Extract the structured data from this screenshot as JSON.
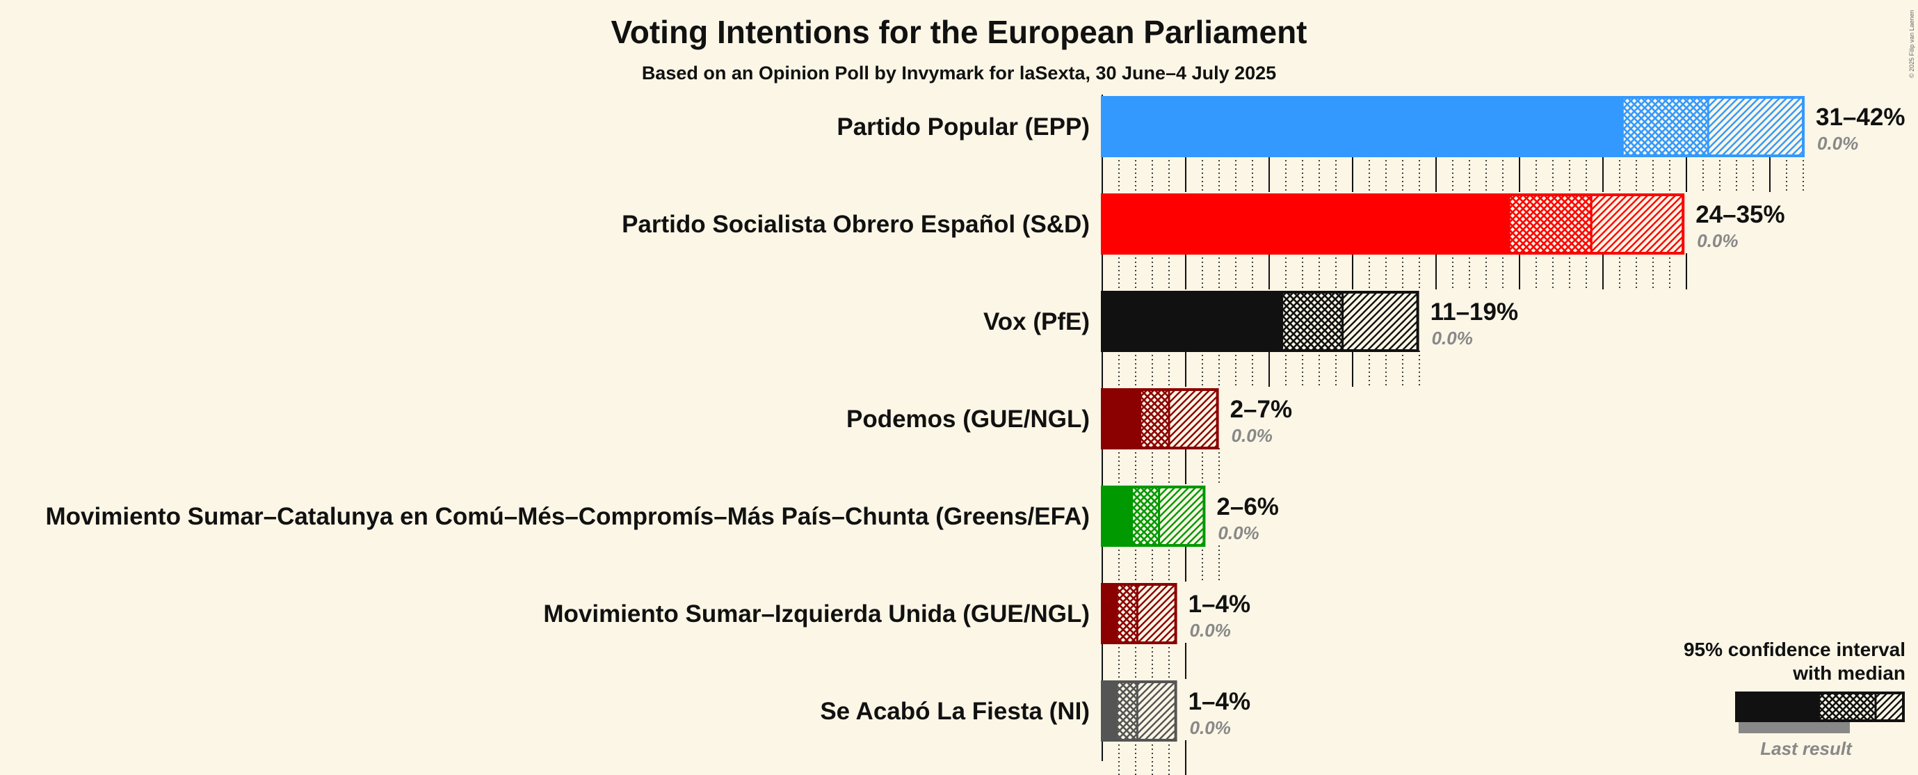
{
  "chart_data": {
    "type": "bar",
    "title": "Voting Intentions for the European Parliament",
    "subtitle": "Based on an Opinion Poll by Invymark for laSexta, 30 June–4 July 2025",
    "copyright": "© 2025 Filip van Laenen",
    "xlim": [
      0,
      42
    ],
    "series": [
      {
        "name": "Partido Popular (EPP)",
        "color": "#3399ff",
        "ci_low": 31.2,
        "median": 36.3,
        "ci_high": 42.0,
        "range_label": "31–42%",
        "last_result": "0.0%"
      },
      {
        "name": "Partido Socialista Obrero Español (S&D)",
        "color": "#ff0000",
        "ci_low": 24.4,
        "median": 29.3,
        "ci_high": 34.8,
        "range_label": "24–35%",
        "last_result": "0.0%"
      },
      {
        "name": "Vox (PfE)",
        "color": "#111111",
        "ci_low": 10.8,
        "median": 14.4,
        "ci_high": 18.9,
        "range_label": "11–19%",
        "last_result": "0.0%"
      },
      {
        "name": "Podemos (GUE/NGL)",
        "color": "#8b0000",
        "ci_low": 2.3,
        "median": 4.0,
        "ci_high": 6.9,
        "range_label": "2–7%",
        "last_result": "0.0%"
      },
      {
        "name": "Movimiento Sumar–Catalunya en Comú–Més–Compromís–Más País–Chunta (Greens/EFA)",
        "color": "#009900",
        "ci_low": 1.8,
        "median": 3.4,
        "ci_high": 6.1,
        "range_label": "2–6%",
        "last_result": "0.0%"
      },
      {
        "name": "Movimiento Sumar–Izquierda Unida (GUE/NGL)",
        "color": "#8b0000",
        "ci_low": 0.9,
        "median": 2.1,
        "ci_high": 4.4,
        "range_label": "1–4%",
        "last_result": "0.0%"
      },
      {
        "name": "Se Acabó La Fiesta (NI)",
        "color": "#555555",
        "ci_low": 0.9,
        "median": 2.1,
        "ci_high": 4.4,
        "range_label": "1–4%",
        "last_result": "0.0%"
      }
    ],
    "legend": {
      "line1": "95% confidence interval",
      "line2": "with median",
      "last": "Last result",
      "position": "bottom-right"
    }
  }
}
